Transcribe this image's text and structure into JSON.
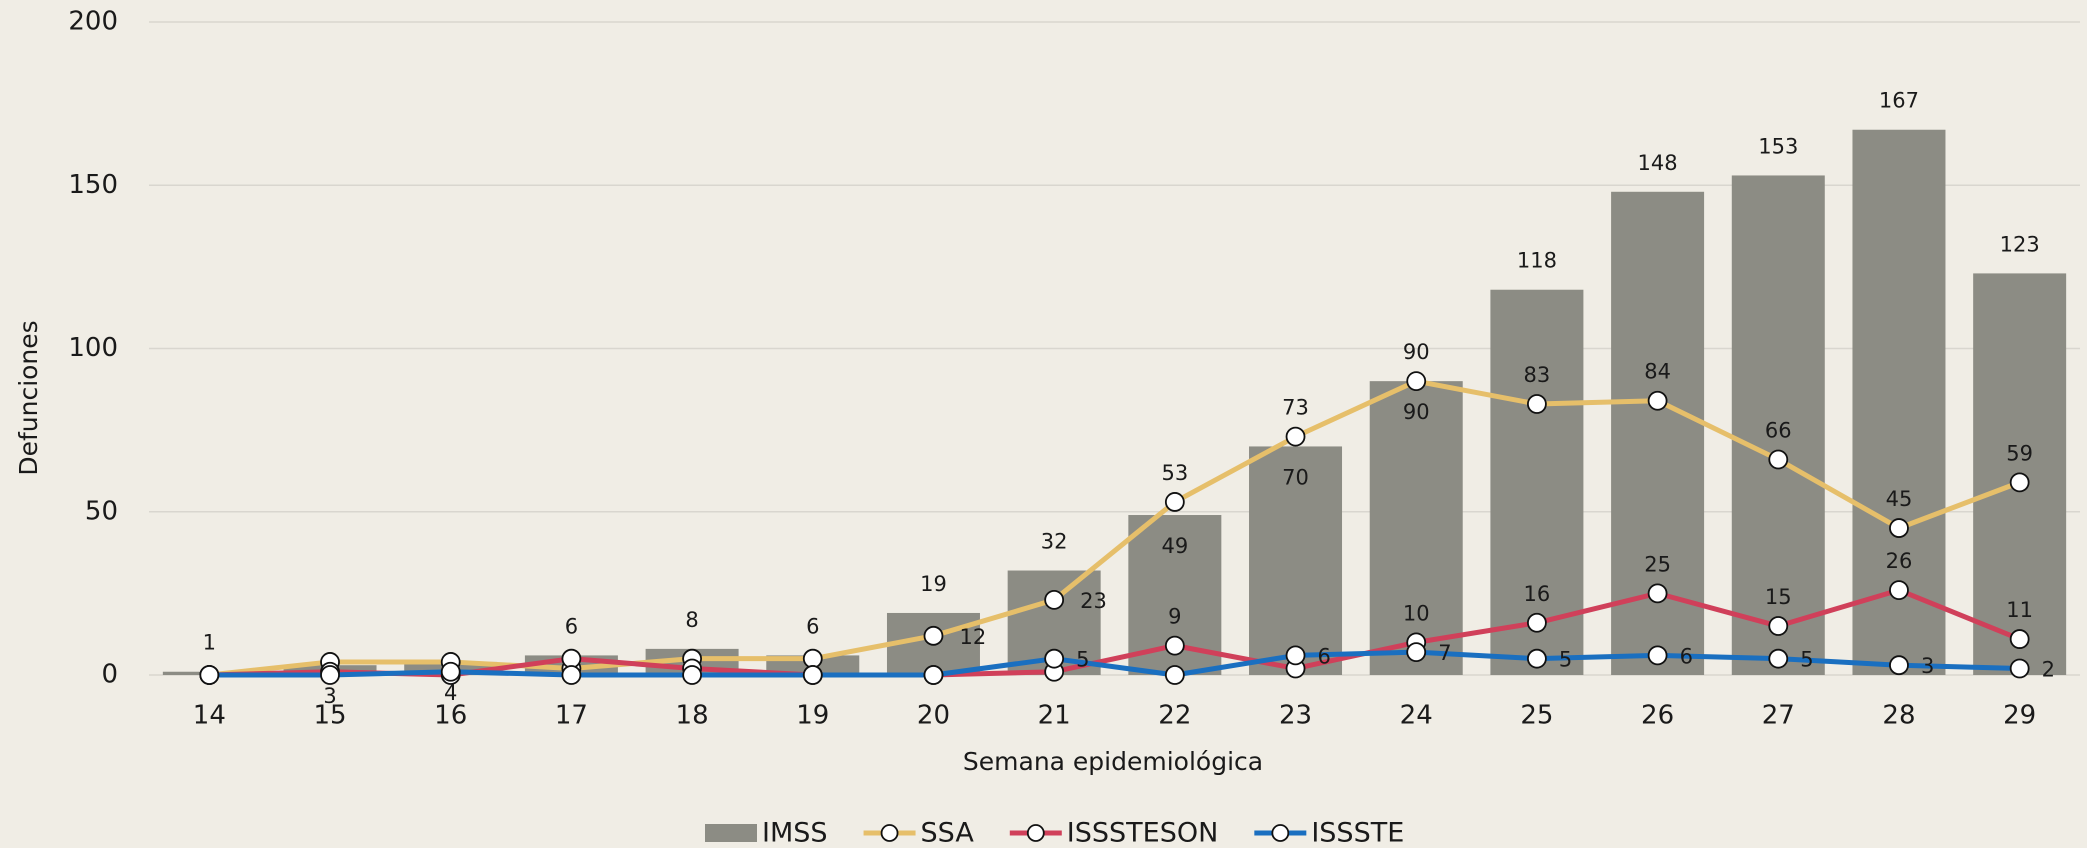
{
  "chart_data": {
    "type": "bar-line",
    "x_label": "Semana epidemiológica",
    "y_label": "Defunciones",
    "categories": [
      "14",
      "15",
      "16",
      "17",
      "18",
      "19",
      "20",
      "21",
      "22",
      "23",
      "24",
      "25",
      "26",
      "27",
      "28",
      "29"
    ],
    "ylim": [
      0,
      200
    ],
    "yticks": [
      0,
      50,
      100,
      150,
      200
    ],
    "grid": true,
    "legend": "bottom",
    "series": [
      {
        "name": "IMSS",
        "type": "bar",
        "color": "#8c8c84",
        "values": [
          1,
          3,
          4,
          6,
          8,
          6,
          19,
          32,
          49,
          70,
          90,
          118,
          148,
          153,
          167,
          123
        ],
        "value_labels": [
          "1",
          "3",
          "4",
          "6",
          "8",
          "6",
          "19",
          "32",
          "49",
          "70",
          "90",
          "118",
          "148",
          "153",
          "167",
          "123"
        ]
      },
      {
        "name": "SSA",
        "type": "line",
        "color": "#e6bf6a",
        "values": [
          0,
          4,
          4,
          2,
          5,
          5,
          12,
          23,
          53,
          73,
          90,
          83,
          84,
          66,
          45,
          59
        ],
        "value_labels": [
          null,
          null,
          null,
          null,
          null,
          null,
          "12",
          "23",
          "53",
          "73",
          "90",
          "83",
          "84",
          "66",
          "45",
          "59"
        ]
      },
      {
        "name": "ISSSTESON",
        "type": "line",
        "color": "#d0405a",
        "values": [
          0,
          1,
          0,
          5,
          2,
          0,
          0,
          1,
          9,
          2,
          10,
          16,
          25,
          15,
          26,
          11
        ],
        "value_labels": [
          null,
          null,
          null,
          null,
          null,
          null,
          null,
          null,
          "9",
          null,
          "10",
          "16",
          "25",
          "15",
          "26",
          "11"
        ]
      },
      {
        "name": "ISSSTE",
        "type": "line",
        "color": "#1a6fc0",
        "values": [
          0,
          0,
          1,
          0,
          0,
          0,
          0,
          5,
          0,
          6,
          7,
          5,
          6,
          5,
          3,
          2
        ],
        "value_labels": [
          null,
          null,
          null,
          null,
          null,
          null,
          null,
          "5",
          null,
          "6",
          "7",
          "5",
          "6",
          "5",
          "3",
          "2"
        ]
      }
    ]
  }
}
